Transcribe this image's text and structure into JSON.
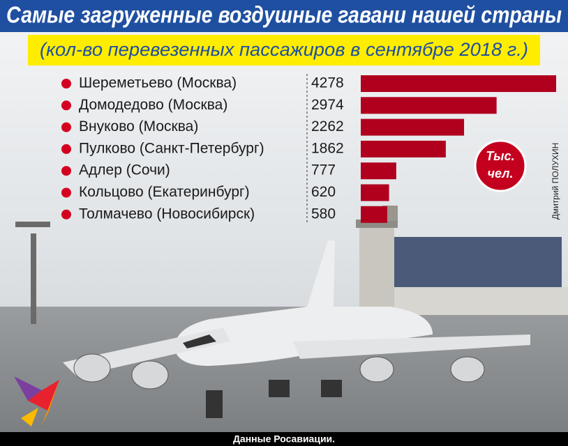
{
  "chart_data": {
    "type": "bar",
    "orientation": "horizontal",
    "title": "Самые загруженные воздушные гавани нашей страны",
    "subtitle": "(кол-во перевезенных пассажиров в сентябре 2018 г.)",
    "categories": [
      "Шереметьево (Москва)",
      "Домодедово (Москва)",
      "Внуково (Москва)",
      "Пулково (Санкт-Петербург)",
      "Адлер (Сочи)",
      "Кольцово (Екатеринбург)",
      "Толмачево (Новосибирск)"
    ],
    "values": [
      4278,
      2974,
      2262,
      1862,
      777,
      620,
      580
    ],
    "color": "#b0001e",
    "unit": [
      "Тыс.",
      "чел."
    ],
    "credit": "Дмитрий ПОЛУХИН",
    "source": "Данные Росавиации."
  }
}
